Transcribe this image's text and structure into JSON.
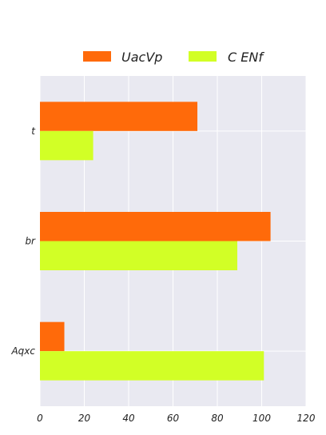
{
  "chart_data": {
    "type": "bar",
    "orientation": "horizontal",
    "categories": [
      "t",
      "br",
      "Aqxc"
    ],
    "series": [
      {
        "name": "UacVp",
        "values": [
          71,
          104,
          11
        ],
        "color": "#ff6a0a"
      },
      {
        "name": "C ENf",
        "values": [
          24,
          89,
          101
        ],
        "color": "#d2ff26"
      }
    ],
    "xlim": [
      0,
      120
    ],
    "xticks": [
      "0",
      "20",
      "40",
      "60",
      "80",
      "100",
      "120"
    ],
    "grid": true,
    "legend": "top-center",
    "background": "#e9e9f1"
  }
}
